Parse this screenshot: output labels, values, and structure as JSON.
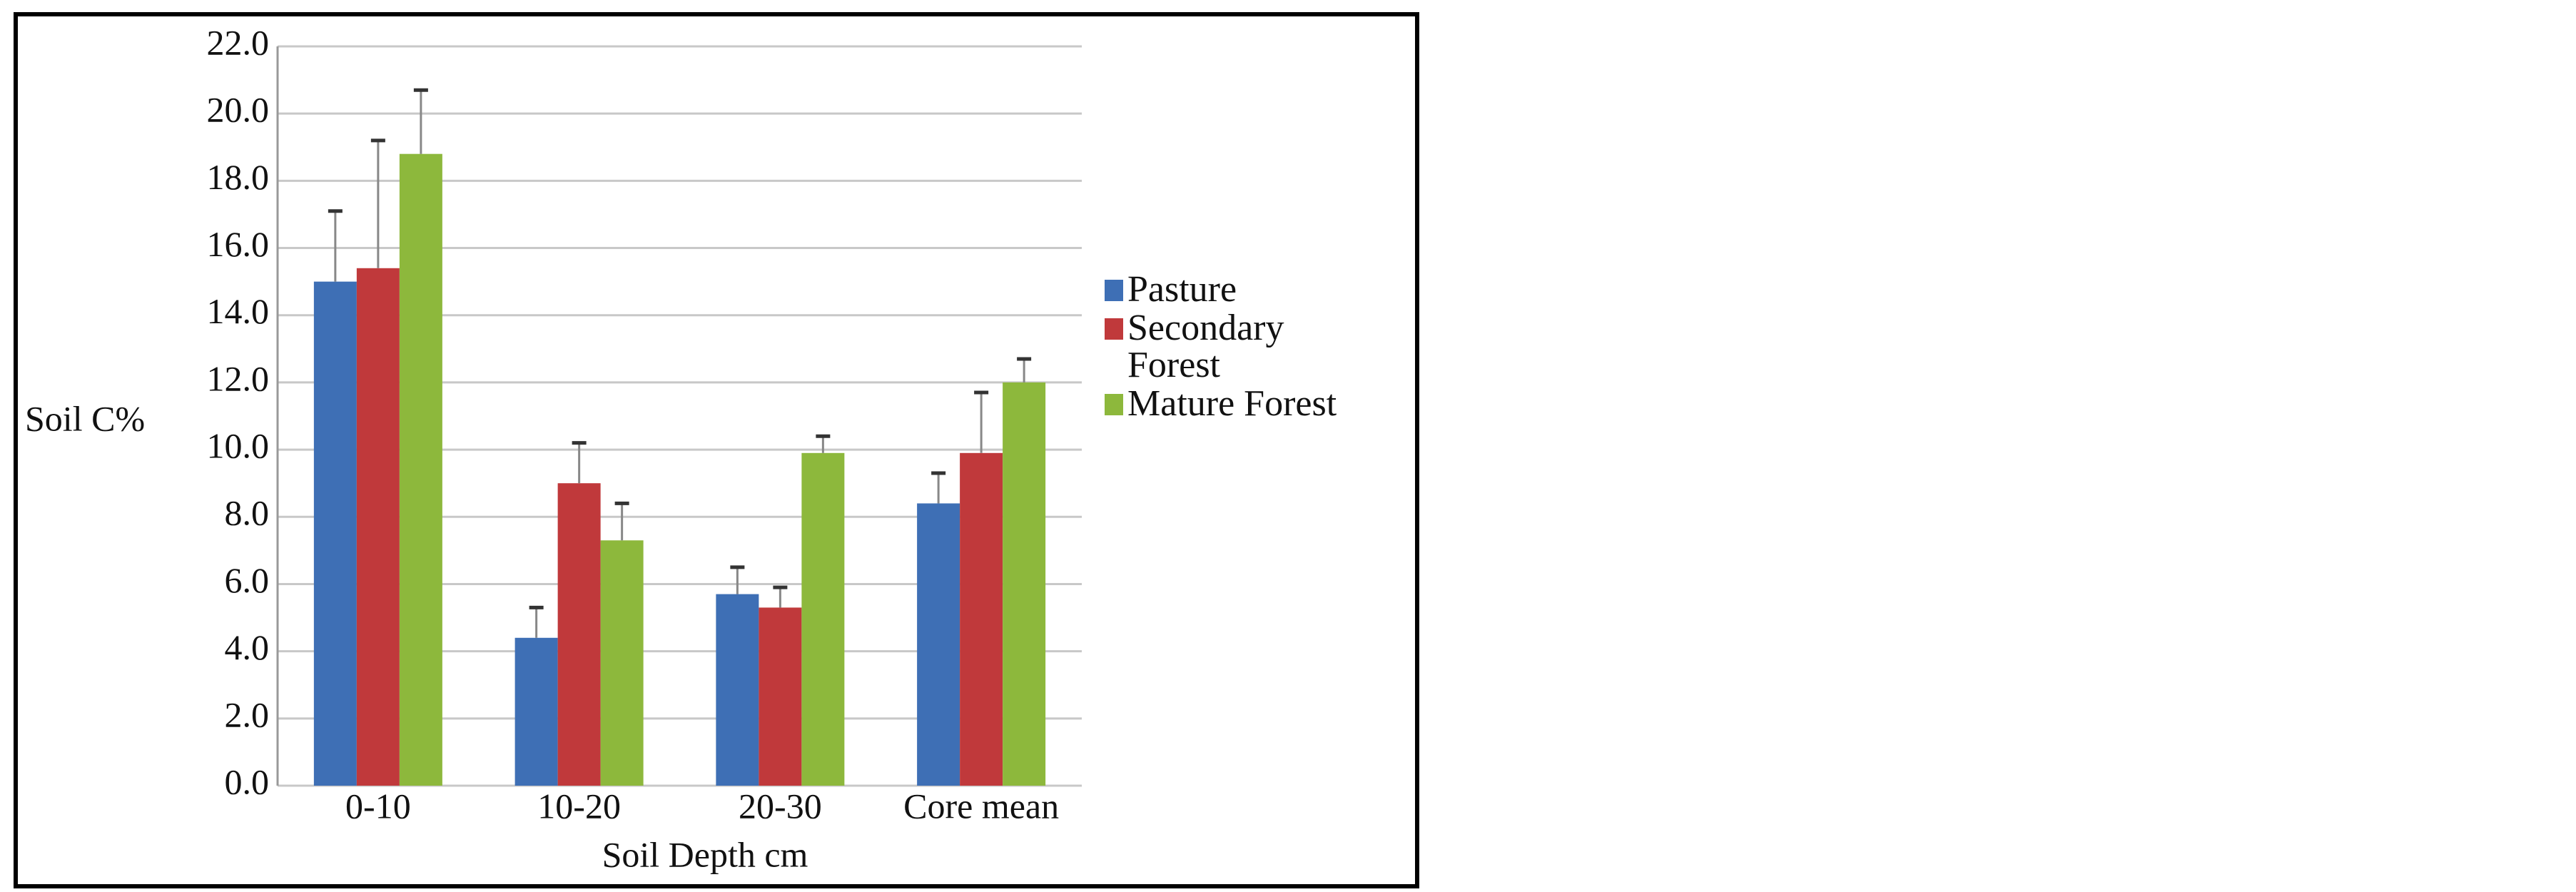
{
  "chart_data": {
    "type": "bar",
    "y_label": "Soil C%",
    "x_label": "Soil Depth cm",
    "categories": [
      "0-10",
      "10-20",
      "20-30",
      "Core mean"
    ],
    "series": [
      {
        "name": "Pasture",
        "color": "#3e6fb5",
        "values": [
          15.0,
          4.4,
          5.7,
          8.4
        ],
        "errors": [
          2.1,
          0.9,
          0.8,
          0.9
        ]
      },
      {
        "name": "Secondary Forest",
        "color": "#c0393b",
        "values": [
          15.4,
          9.0,
          5.3,
          9.9
        ],
        "errors": [
          3.8,
          1.2,
          0.6,
          1.8
        ]
      },
      {
        "name": "Mature Forest",
        "color": "#8db83c",
        "values": [
          18.8,
          7.3,
          9.9,
          12.0
        ],
        "errors": [
          1.9,
          1.1,
          0.5,
          0.7
        ]
      }
    ],
    "ylim": [
      0,
      22
    ],
    "yticks": [
      {
        "value": 0,
        "label": "0.0"
      },
      {
        "value": 2,
        "label": "2.0"
      },
      {
        "value": 4,
        "label": "4.0"
      },
      {
        "value": 6,
        "label": "6.0"
      },
      {
        "value": 8,
        "label": "8.0"
      },
      {
        "value": 10,
        "label": "10.0"
      },
      {
        "value": 12,
        "label": "12.0"
      },
      {
        "value": 14,
        "label": "14.0"
      },
      {
        "value": 16,
        "label": "16.0"
      },
      {
        "value": 18,
        "label": "18.0"
      },
      {
        "value": 20,
        "label": "20.0"
      },
      {
        "value": 22,
        "label": "22.0"
      }
    ],
    "grid": true,
    "legend": "right"
  }
}
